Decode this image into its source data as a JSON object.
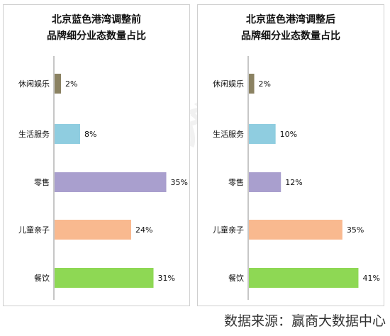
{
  "watermark": "商业地产云智库",
  "source": "数据来源：赢商大数据中心",
  "chart_data": [
    {
      "type": "bar",
      "orientation": "horizontal",
      "title_line1": "北京蓝色港湾调整前",
      "title_line2": "品牌细分业态数量占比",
      "categories": [
        "休闲娱乐",
        "生活服务",
        "零售",
        "儿童亲子",
        "餐饮"
      ],
      "values": [
        2,
        8,
        35,
        24,
        31
      ],
      "value_labels": [
        "2%",
        "8%",
        "35%",
        "24%",
        "31%"
      ],
      "colors": [
        "#8b8262",
        "#8fcde0",
        "#a99fce",
        "#f9b98f",
        "#8ed854"
      ],
      "xlim": [
        0,
        36
      ],
      "grid": false
    },
    {
      "type": "bar",
      "orientation": "horizontal",
      "title_line1": "北京蓝色港湾调整后",
      "title_line2": "品牌细分业态数量占比",
      "categories": [
        "休闲娱乐",
        "生活服务",
        "零售",
        "儿童亲子",
        "餐饮"
      ],
      "values": [
        2,
        10,
        12,
        35,
        41
      ],
      "value_labels": [
        "2%",
        "10%",
        "12%",
        "35%",
        "41%"
      ],
      "colors": [
        "#8b8262",
        "#8fcde0",
        "#a99fce",
        "#f9b98f",
        "#8ed854"
      ],
      "xlim": [
        0,
        43
      ],
      "grid": false
    }
  ]
}
